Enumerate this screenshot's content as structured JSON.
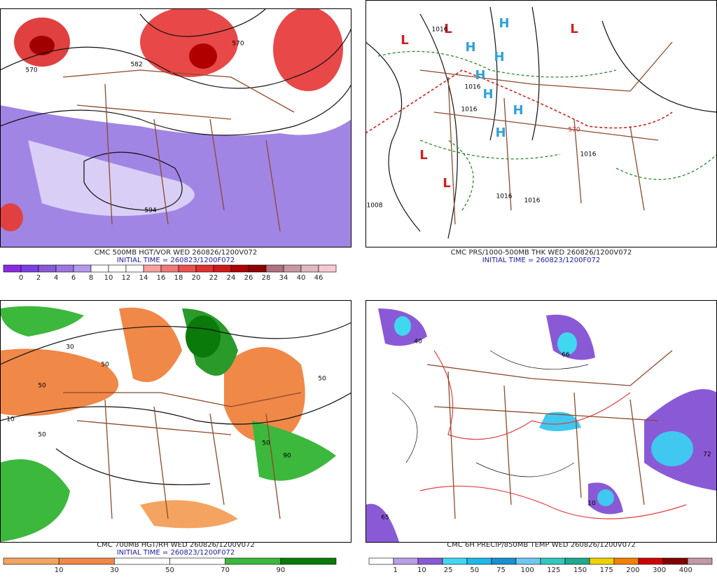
{
  "panels": [
    {
      "caption": "CMC 500MB HGT/VOR WED 260826/1200V072",
      "initial_time": "INITIAL TIME = 260823/1200F072",
      "colorbar": {
        "labels": [
          "0",
          "2",
          "4",
          "6",
          "8",
          "10",
          "12",
          "14",
          "16",
          "18",
          "20",
          "22",
          "24",
          "26",
          "28",
          "34",
          "40",
          "46"
        ],
        "colors": [
          "#8a2be2",
          "#7b3fe4",
          "#8a5ad6",
          "#9d77e0",
          "#b49aea",
          "#ffffff",
          "#ffffff",
          "#ffffff",
          "#f7a0a0",
          "#f07878",
          "#e85050",
          "#e03030",
          "#d01818",
          "#b00000",
          "#900000",
          "#b07080",
          "#c898a0",
          "#e0b8c0",
          "#f8c8d0"
        ]
      },
      "map_labels": [
        "570",
        "582",
        "594",
        "570"
      ]
    },
    {
      "caption": "CMC PRS/1000-500MB THK WED 260826/1200V072",
      "initial_time": "INITIAL TIME = 260823/1200F072",
      "map_labels": [
        "L",
        "L",
        "L",
        "L",
        "L",
        "H",
        "H",
        "H",
        "H",
        "H",
        "H",
        "H",
        "1016",
        "1016",
        "1016",
        "1016",
        "1008",
        "1016",
        "1016",
        "570"
      ]
    },
    {
      "caption": "CMC 700MB HGT/RH WED 260826/1200V072",
      "initial_time": "INITIAL TIME = 260823/1200F072",
      "colorbar": {
        "labels": [
          "10",
          "30",
          "50",
          "70",
          "90"
        ],
        "colors": [
          "#f4a460",
          "#f08848",
          "#ffffff",
          "#ffffff",
          "#3cb83c",
          "#0a7a0a"
        ]
      },
      "map_labels": [
        "50",
        "50",
        "50",
        "10",
        "50",
        "30",
        "50",
        "90"
      ]
    },
    {
      "caption": "CMC 6H PRECIP/850MB TEMP WED 260826/1200V072",
      "colorbar": {
        "labels": [
          "1",
          "10",
          "25",
          "50",
          "75",
          "100",
          "125",
          "150",
          "175",
          "200",
          "300",
          "400"
        ],
        "colors": [
          "#ffffff",
          "#b8a0e8",
          "#8a5ad6",
          "#40d8f0",
          "#20b8e8",
          "#1890d0",
          "#70c8f0",
          "#30c8c0",
          "#20a890",
          "#f0d000",
          "#f08000",
          "#d00000",
          "#800000",
          "#c098a8"
        ]
      },
      "map_labels": [
        "40",
        "66",
        "10",
        "72",
        "65"
      ]
    }
  ]
}
